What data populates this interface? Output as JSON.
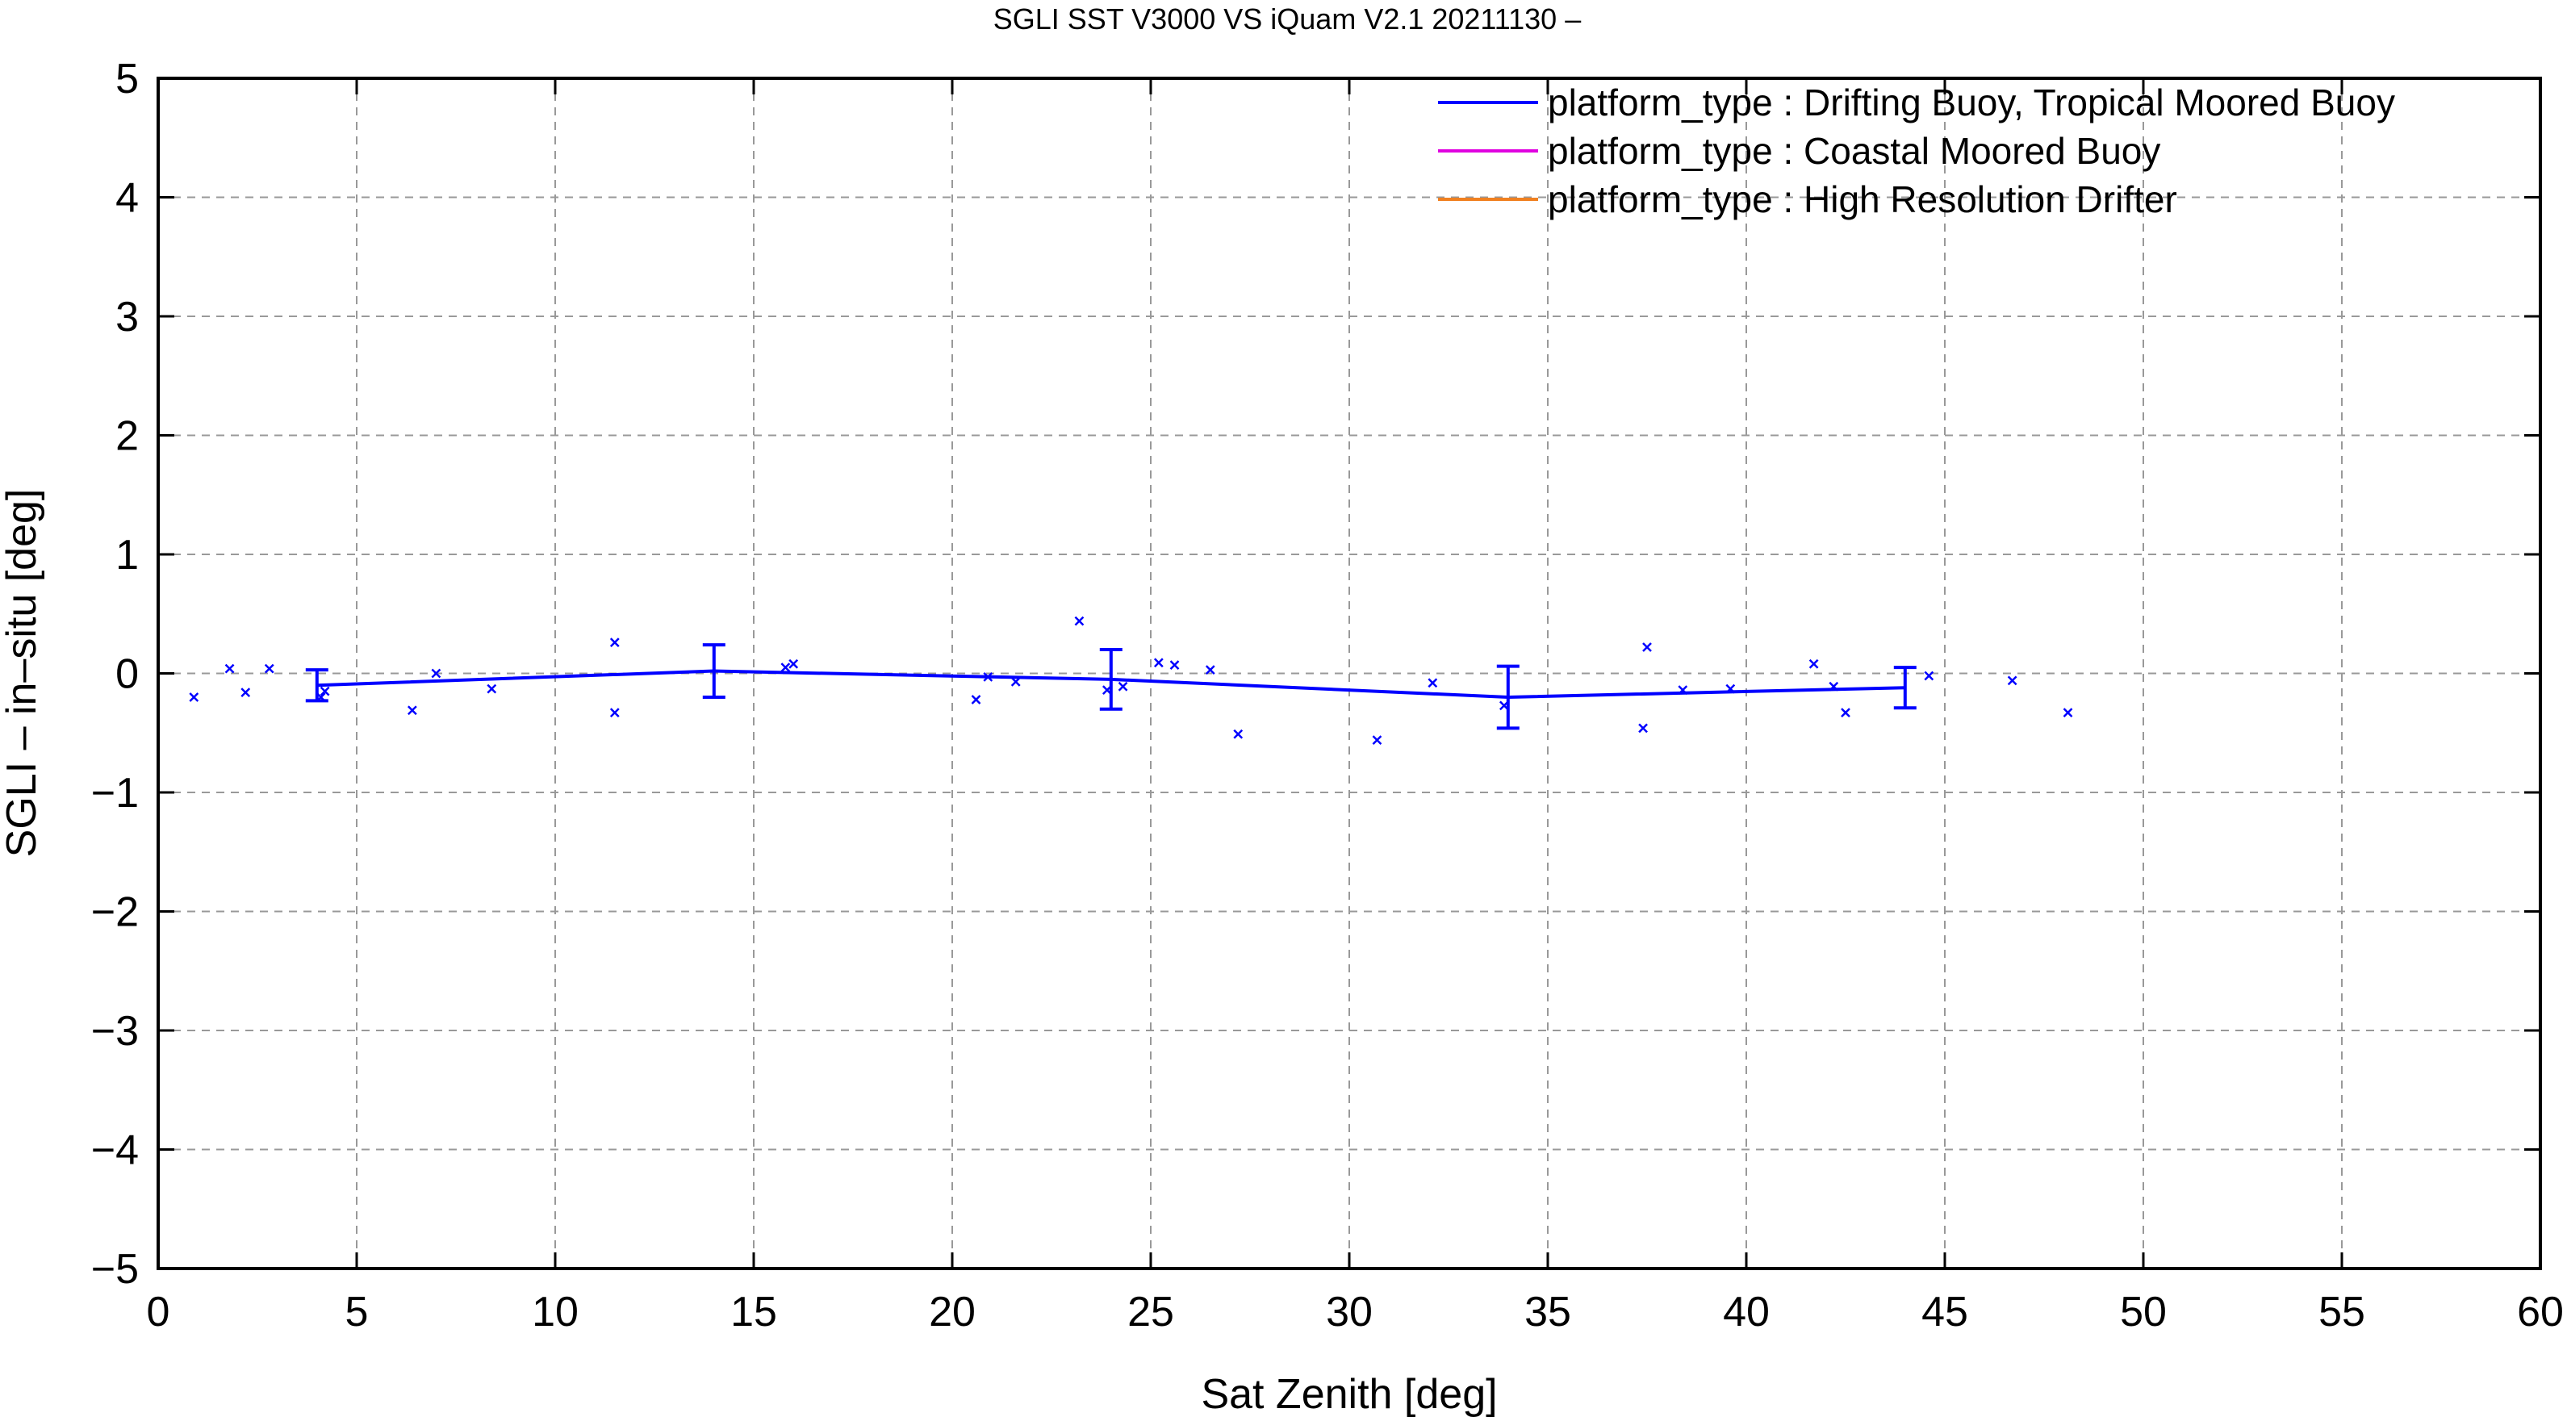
{
  "chart_data": {
    "type": "line",
    "title": "SGLI SST V3000 VS iQuam V2.1 20211130 –",
    "xlabel": "Sat Zenith [deg]",
    "ylabel": "SGLI – in–situ [deg]",
    "xlim": [
      0,
      60
    ],
    "ylim": [
      -5,
      5
    ],
    "x_ticks": [
      "0",
      "5",
      "10",
      "15",
      "20",
      "25",
      "30",
      "35",
      "40",
      "45",
      "50",
      "55",
      "60"
    ],
    "y_ticks": [
      "5",
      "4",
      "3",
      "2",
      "1",
      "0",
      "−1",
      "−2",
      "−3",
      "−4",
      "−5"
    ],
    "grid": true,
    "legend_position": "top-right",
    "series": [
      {
        "name": "platform_type : Drifting Buoy, Tropical Moored Buoy",
        "color": "#0000ff",
        "x": [
          4,
          14,
          24,
          34,
          44
        ],
        "y": [
          -0.1,
          0.02,
          -0.05,
          -0.2,
          -0.12
        ],
        "error": [
          0.13,
          0.22,
          0.25,
          0.26,
          0.17
        ],
        "points": [
          [
            0.9,
            -0.2
          ],
          [
            1.8,
            0.04
          ],
          [
            2.2,
            -0.16
          ],
          [
            2.8,
            0.04
          ],
          [
            4.1,
            -0.2
          ],
          [
            4.2,
            -0.15
          ],
          [
            6.4,
            -0.31
          ],
          [
            7.0,
            0.0
          ],
          [
            8.4,
            -0.13
          ],
          [
            11.5,
            0.26
          ],
          [
            11.5,
            -0.33
          ],
          [
            15.8,
            0.05
          ],
          [
            16.0,
            0.08
          ],
          [
            20.6,
            -0.22
          ],
          [
            20.9,
            -0.03
          ],
          [
            21.6,
            -0.07
          ],
          [
            23.2,
            0.44
          ],
          [
            23.9,
            -0.14
          ],
          [
            24.3,
            -0.11
          ],
          [
            25.2,
            0.09
          ],
          [
            25.6,
            0.07
          ],
          [
            26.5,
            0.03
          ],
          [
            27.2,
            -0.51
          ],
          [
            30.7,
            -0.56
          ],
          [
            32.1,
            -0.08
          ],
          [
            33.9,
            -0.27
          ],
          [
            37.4,
            -0.46
          ],
          [
            37.5,
            0.22
          ],
          [
            38.4,
            -0.14
          ],
          [
            39.6,
            -0.13
          ],
          [
            41.7,
            0.08
          ],
          [
            42.2,
            -0.11
          ],
          [
            42.5,
            -0.33
          ],
          [
            44.6,
            -0.02
          ],
          [
            46.7,
            -0.06
          ],
          [
            48.1,
            -0.33
          ]
        ]
      },
      {
        "name": "platform_type : Coastal Moored Buoy",
        "color": "#e000e0",
        "x": [],
        "y": []
      },
      {
        "name": "platform_type : High Resolution Drifter",
        "color": "#f08020",
        "x": [],
        "y": []
      }
    ]
  }
}
